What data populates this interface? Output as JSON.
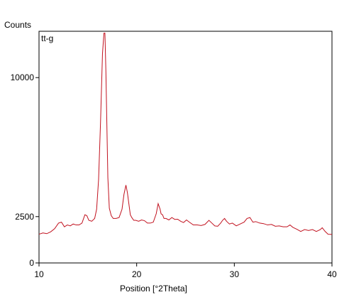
{
  "chart_data": {
    "type": "line",
    "ylabel": "Counts",
    "xlabel": "Position [°2Theta]",
    "series": [
      {
        "name": "tt-g",
        "x": [
          10.0,
          10.4,
          10.8,
          11.2,
          11.6,
          12.0,
          12.3,
          12.6,
          12.9,
          13.2,
          13.5,
          13.8,
          14.1,
          14.4,
          14.7,
          14.9,
          15.1,
          15.4,
          15.7,
          15.9,
          16.1,
          16.3,
          16.5,
          16.65,
          16.75,
          16.85,
          16.95,
          17.05,
          17.2,
          17.4,
          17.6,
          17.9,
          18.2,
          18.5,
          18.7,
          18.9,
          19.05,
          19.2,
          19.35,
          19.5,
          19.7,
          19.9,
          20.2,
          20.5,
          20.8,
          21.1,
          21.4,
          21.7,
          22.0,
          22.2,
          22.4,
          22.5,
          22.65,
          22.8,
          23.0,
          23.3,
          23.6,
          23.9,
          24.2,
          24.5,
          24.8,
          25.1,
          25.4,
          25.8,
          26.2,
          26.6,
          27.0,
          27.4,
          27.7,
          28.0,
          28.3,
          28.6,
          28.8,
          29.0,
          29.2,
          29.5,
          29.8,
          30.2,
          30.6,
          31.0,
          31.3,
          31.6,
          31.9,
          32.2,
          32.6,
          33.0,
          33.4,
          33.8,
          34.2,
          34.6,
          35.0,
          35.4,
          35.7,
          36.0,
          36.4,
          36.8,
          37.2,
          37.6,
          38.0,
          38.4,
          38.8,
          39.0,
          39.3,
          39.6,
          40.0
        ],
        "y": [
          1550,
          1620,
          1580,
          1680,
          1850,
          2150,
          2200,
          1950,
          2050,
          2000,
          2100,
          2050,
          2050,
          2150,
          2600,
          2550,
          2300,
          2250,
          2400,
          2900,
          4500,
          7600,
          11300,
          12400,
          12400,
          10300,
          7400,
          4600,
          2950,
          2550,
          2400,
          2400,
          2450,
          2900,
          3700,
          4200,
          3800,
          3200,
          2600,
          2450,
          2300,
          2300,
          2250,
          2320,
          2280,
          2150,
          2150,
          2200,
          2650,
          3200,
          2900,
          2650,
          2600,
          2400,
          2400,
          2320,
          2450,
          2350,
          2360,
          2250,
          2180,
          2320,
          2200,
          2050,
          2050,
          2020,
          2080,
          2300,
          2150,
          2000,
          1980,
          2150,
          2300,
          2400,
          2250,
          2100,
          2150,
          2000,
          2100,
          2200,
          2400,
          2450,
          2200,
          2230,
          2150,
          2120,
          2050,
          2080,
          1980,
          2000,
          1950,
          1950,
          2050,
          1920,
          1820,
          1700,
          1800,
          1750,
          1800,
          1700,
          1800,
          1900,
          1700,
          1550,
          1540
        ]
      }
    ],
    "color": "#c1121f",
    "xlim": [
      10,
      40
    ],
    "ylim": [
      0,
      12500
    ],
    "x_ticks": [
      10,
      20,
      30,
      40
    ],
    "y_ticks": [
      0,
      2500,
      10000
    ],
    "y_tick_labels": [
      "0",
      "2500",
      "10000"
    ],
    "grid": false,
    "legend": "top-left inside"
  }
}
